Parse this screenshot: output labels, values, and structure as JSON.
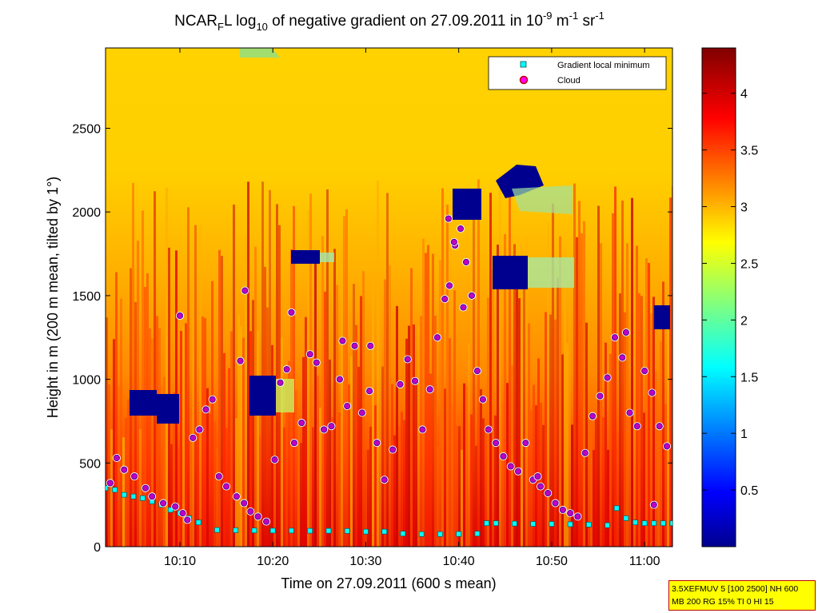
{
  "chart_data": {
    "type": "heatmap",
    "title": {
      "p1": "NCAR",
      "sub1": "F",
      "p2": "L log",
      "sub2": "10",
      "p3": " of negative gradient on 27.09.2011 in 10",
      "sup1": "-9",
      "p4": " m",
      "sup2": "-1",
      "p5": " sr",
      "sup3": "-1"
    },
    "xlabel": "Time on 27.09.2011 (600 s mean)",
    "ylabel": "Height in m (200 m mean, tilted by 1°)",
    "xlim": [
      "10:02",
      "11:03"
    ],
    "ylim": [
      0,
      2980
    ],
    "x_ticks": [
      "10:10",
      "10:20",
      "10:30",
      "10:40",
      "10:50",
      "11:00"
    ],
    "y_ticks": [
      0,
      500,
      1000,
      1500,
      2000,
      2500
    ],
    "colorbar": {
      "range": [
        0,
        4.4
      ],
      "ticks": [
        0.5,
        1,
        1.5,
        2,
        2.5,
        3,
        3.5,
        4
      ],
      "colormap": "jet"
    },
    "legend": {
      "placement": "top-right",
      "entries": [
        "Gradient local minimum",
        "Cloud"
      ]
    },
    "series": [
      {
        "name": "Gradient local minimum",
        "marker": "square",
        "color": "#00ffff",
        "x_minutes_after_10": [
          2,
          3,
          4,
          5,
          6,
          7,
          8,
          9,
          10,
          11,
          12,
          14,
          16,
          18,
          20,
          22,
          24,
          26,
          28,
          30,
          32,
          34,
          36,
          38,
          40,
          42,
          43,
          44,
          46,
          48,
          50,
          52,
          54,
          56,
          57,
          58,
          59,
          60,
          61,
          62,
          63
        ],
        "y": [
          350,
          340,
          310,
          300,
          290,
          270,
          250,
          220,
          200,
          170,
          145,
          100,
          98,
          97,
          96,
          96,
          95,
          95,
          94,
          90,
          90,
          78,
          75,
          75,
          76,
          78,
          140,
          140,
          138,
          136,
          136,
          134,
          132,
          128,
          230,
          170,
          145,
          140,
          140,
          140,
          140
        ]
      },
      {
        "name": "Cloud",
        "marker": "circle",
        "color": "#ff00ff",
        "x_minutes_after_10": [
          2.5,
          3.2,
          4.0,
          5.1,
          6.3,
          7.0,
          8.2,
          9.5,
          10.3,
          10.8,
          11.4,
          12.1,
          12.8,
          13.5,
          14.2,
          15.0,
          16.1,
          16.9,
          17.6,
          18.4,
          19.3,
          20.2,
          20.8,
          21.5,
          22.3,
          23.1,
          24.0,
          24.7,
          25.5,
          26.3,
          27.2,
          28.0,
          28.8,
          29.6,
          30.4,
          31.2,
          32.0,
          32.9,
          33.7,
          34.5,
          35.3,
          36.1,
          36.9,
          37.7,
          38.5,
          39.0,
          39.6,
          40.2,
          40.8,
          41.4,
          42.0,
          42.6,
          43.2,
          44.0,
          44.8,
          45.6,
          46.4,
          47.2,
          48.0,
          48.8,
          49.6,
          50.4,
          51.2,
          52.0,
          52.8,
          53.6,
          54.4,
          55.2,
          56.0,
          56.8,
          57.6,
          58.4,
          59.2,
          60.0,
          60.8,
          61.6,
          62.4,
          17.0,
          22.0,
          10.0,
          16.5,
          38.9,
          39.5,
          40.5,
          30.5,
          27.5,
          48.5,
          58.0,
          61.0
        ],
        "y": [
          380,
          530,
          460,
          420,
          350,
          300,
          260,
          240,
          200,
          160,
          650,
          700,
          820,
          880,
          420,
          360,
          300,
          260,
          210,
          180,
          150,
          520,
          980,
          1060,
          620,
          740,
          1150,
          1100,
          700,
          720,
          1000,
          840,
          1200,
          800,
          930,
          620,
          400,
          580,
          970,
          1120,
          990,
          700,
          940,
          1250,
          1480,
          1560,
          1800,
          1900,
          1700,
          1500,
          1050,
          880,
          700,
          620,
          540,
          480,
          450,
          620,
          400,
          360,
          320,
          260,
          220,
          200,
          180,
          560,
          780,
          900,
          1010,
          1250,
          1130,
          800,
          720,
          1050,
          920,
          720,
          600,
          1530,
          1400,
          1380,
          1110,
          1960,
          1820,
          1430,
          1200,
          1230,
          420,
          1280,
          250
        ]
      }
    ]
  },
  "infobox": {
    "line1": "3.5XEFMUV 5 [100 2500] NH 600",
    "line2": "MB 200 RG 15% TI 0 HI 15"
  }
}
